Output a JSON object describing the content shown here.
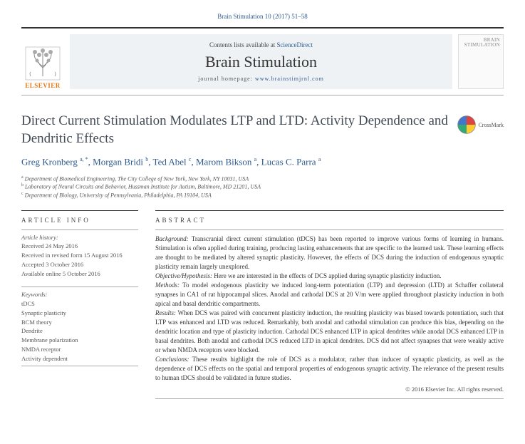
{
  "citation": "Brain Stimulation 10 (2017) 51–58",
  "header": {
    "contents_pre": "Contents lists available at ",
    "contents_link": "ScienceDirect",
    "journal": "Brain Stimulation",
    "homepage_pre": "journal homepage: ",
    "homepage_link": "www.brainstimjrnl.com",
    "publisher": "ELSEVIER",
    "cover_l1": "BRAIN",
    "cover_l2": "STIMULATION"
  },
  "title": "Direct Current Stimulation Modulates LTP and LTD: Activity Dependence and Dendritic Effects",
  "crossmark": "CrossMark",
  "authors": [
    {
      "name": "Greg Kronberg",
      "marks": "a, *"
    },
    {
      "name": "Morgan Bridi",
      "marks": "b"
    },
    {
      "name": "Ted Abel",
      "marks": "c"
    },
    {
      "name": "Marom Bikson",
      "marks": "a"
    },
    {
      "name": "Lucas C. Parra",
      "marks": "a"
    }
  ],
  "affiliations": [
    {
      "mark": "a",
      "text": "Department of Biomedical Engineering, The City College of New York, New York, NY 10031, USA"
    },
    {
      "mark": "b",
      "text": "Laboratory of Neural Circuits and Behavior, Hussman Institute for Autism, Baltimore, MD 21201, USA"
    },
    {
      "mark": "c",
      "text": "Department of Biology, University of Pennsylvania, Philadelphia, PA 19104, USA"
    }
  ],
  "info_heading": "ARTICLE INFO",
  "history_label": "Article history:",
  "history": [
    "Received 24 May 2016",
    "Received in revised form 15 August 2016",
    "Accepted 3 October 2016",
    "Available online 5 October 2016"
  ],
  "keywords_label": "Keywords:",
  "keywords": [
    "tDCS",
    "Synaptic plasticity",
    "BCM theory",
    "Dendrite",
    "Membrane polarization",
    "NMDA receptor",
    "Activity dependent"
  ],
  "abstract_heading": "ABSTRACT",
  "abstract": {
    "background_lbl": "Background:",
    "background": " Transcranial direct current stimulation (tDCS) has been reported to improve various forms of learning in humans. Stimulation is often applied during training, producing lasting enhancements that are specific to the learned task. These learning effects are thought to be mediated by altered synaptic plasticity. However, the effects of DCS during the induction of endogenous synaptic plasticity remain largely unexplored.",
    "objective_lbl": "Objective/Hypothesis:",
    "objective": " Here we are interested in the effects of DCS applied during synaptic plasticity induction.",
    "methods_lbl": "Methods:",
    "methods": " To model endogenous plasticity we induced long-term potentiation (LTP) and depression (LTD) at Schaffer collateral synapses in CA1 of rat hippocampal slices. Anodal and cathodal DCS at 20 V/m were applied throughout plasticity induction in both apical and basal dendritic compartments.",
    "results_lbl": "Results:",
    "results": " When DCS was paired with concurrent plasticity induction, the resulting plasticity was biased towards potentiation, such that LTP was enhanced and LTD was reduced. Remarkably, both anodal and cathodal stimulation can produce this bias, depending on the dendritic location and type of plasticity induction. Cathodal DCS enhanced LTP in apical dendrites while anodal DCS enhanced LTP in basal dendrites. Both anodal and cathodal DCS reduced LTD in apical dendrites. DCS did not affect synapses that were weakly active or when NMDA receptors were blocked.",
    "conclusions_lbl": "Conclusions:",
    "conclusions": " These results highlight the role of DCS as a modulator, rather than inducer of synaptic plasticity, as well as the dependence of DCS effects on the spatial and temporal properties of endogenous synaptic activity. The relevance of the present results to human tDCS should be validated in future studies."
  },
  "copyright": "© 2016 Elsevier Inc. All rights reserved.",
  "colors": {
    "link": "#2e5a8e",
    "publisher": "#e67817",
    "title": "#424b56"
  }
}
